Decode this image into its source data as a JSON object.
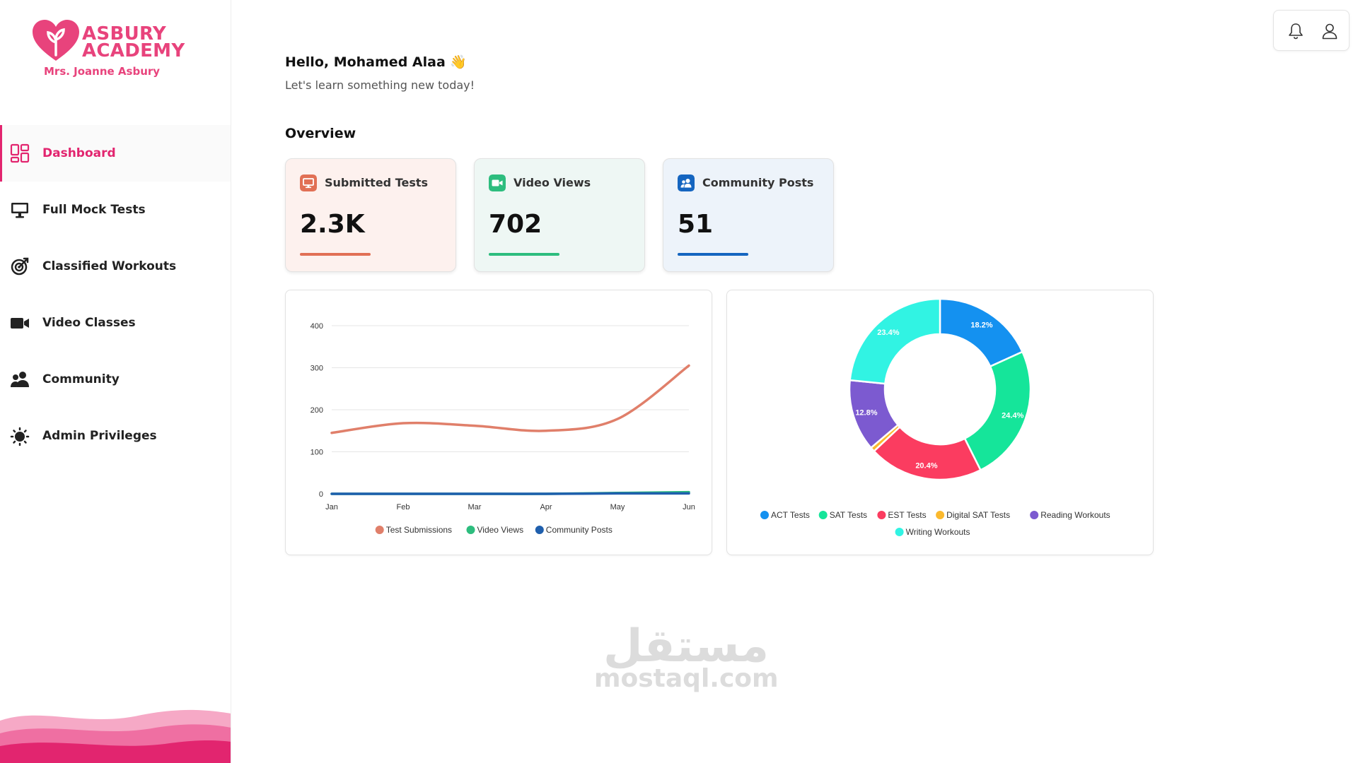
{
  "brand": {
    "name_line1": "ASBURY",
    "name_line2": "ACADEMY",
    "subtitle": "Mrs. Joanne Asbury",
    "color": "#e8437c"
  },
  "sidebar": {
    "items": [
      {
        "label": "Dashboard",
        "icon": "dashboard-grid-icon",
        "active": true
      },
      {
        "label": "Full Mock Tests",
        "icon": "monitor-icon"
      },
      {
        "label": "Classified Workouts",
        "icon": "target-icon"
      },
      {
        "label": "Video Classes",
        "icon": "video-camera-icon"
      },
      {
        "label": "Community",
        "icon": "users-icon"
      },
      {
        "label": "Admin Privileges",
        "icon": "admin-gear-icon"
      }
    ]
  },
  "header": {
    "greeting": "Hello, Mohamed Alaa 👋",
    "subtitle": "Let's learn something new today!",
    "section_title": "Overview"
  },
  "topbar": {
    "icons": [
      "bell-icon",
      "user-icon"
    ]
  },
  "stats": [
    {
      "label": "Submitted Tests",
      "value": "2.3K",
      "icon": "monitor-icon",
      "color": "#e17055",
      "bg": "#fdf1ee"
    },
    {
      "label": "Video Views",
      "value": "702",
      "icon": "video-camera-icon",
      "color": "#2dbd7e",
      "bg": "#eef7f4"
    },
    {
      "label": "Community Posts",
      "value": "51",
      "icon": "users-icon",
      "color": "#1565c0",
      "bg": "#edf3fa"
    }
  ],
  "chart_data": [
    {
      "type": "line",
      "categories": [
        "Jan",
        "Feb",
        "Mar",
        "Apr",
        "May",
        "Jun"
      ],
      "ylim": [
        0,
        400
      ],
      "yticks": [
        "0",
        "100",
        "200",
        "300",
        "400"
      ],
      "grid": true,
      "legend_position": "bottom",
      "series": [
        {
          "name": "Test Submissions",
          "color": "#e07f6a",
          "values": [
            145,
            168,
            162,
            150,
            178,
            305
          ]
        },
        {
          "name": "Video Views",
          "color": "#2dbd7e",
          "values": [
            0,
            0,
            0,
            0,
            2,
            4
          ]
        },
        {
          "name": "Community Posts",
          "color": "#1f5fad",
          "values": [
            0,
            0,
            0,
            0,
            1,
            1
          ]
        }
      ]
    },
    {
      "type": "pie",
      "donut": true,
      "legend_position": "bottom",
      "slices": [
        {
          "name": "ACT Tests",
          "value": 18.2,
          "label": "18.2%",
          "color": "#1491f0"
        },
        {
          "name": "SAT Tests",
          "value": 24.4,
          "label": "24.4%",
          "color": "#15e59a"
        },
        {
          "name": "EST Tests",
          "value": 20.4,
          "label": "20.4%",
          "color": "#fb3c60"
        },
        {
          "name": "Digital SAT Tests",
          "value": 0.8,
          "label": "",
          "color": "#fbb92e"
        },
        {
          "name": "Reading Workouts",
          "value": 12.8,
          "label": "12.8%",
          "color": "#7c5ad0"
        },
        {
          "name": "Writing Workouts",
          "value": 23.4,
          "label": "23.4%",
          "color": "#31f3e3"
        }
      ]
    }
  ],
  "watermark": {
    "arabic": "مستقل",
    "latin": "mostaql.com"
  }
}
